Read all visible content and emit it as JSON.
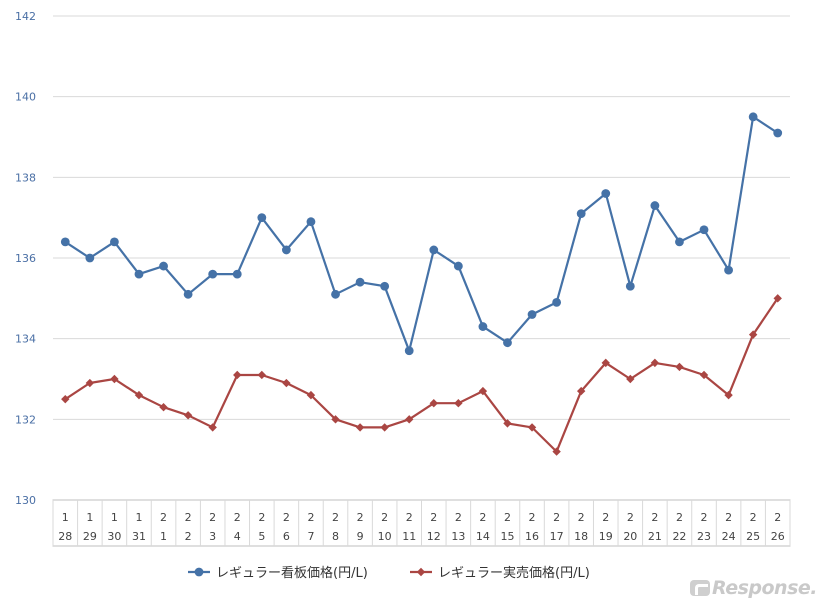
{
  "chart_data": {
    "type": "line",
    "title": "",
    "xlabel": "",
    "ylabel": "",
    "ylim": [
      130,
      142
    ],
    "yticks": [
      "130",
      "132",
      "134",
      "136",
      "138",
      "140",
      "142"
    ],
    "categories": [
      {
        "month": "1",
        "day": "28"
      },
      {
        "month": "1",
        "day": "29"
      },
      {
        "month": "1",
        "day": "30"
      },
      {
        "month": "1",
        "day": "31"
      },
      {
        "month": "2",
        "day": "1"
      },
      {
        "month": "2",
        "day": "2"
      },
      {
        "month": "2",
        "day": "3"
      },
      {
        "month": "2",
        "day": "4"
      },
      {
        "month": "2",
        "day": "5"
      },
      {
        "month": "2",
        "day": "6"
      },
      {
        "month": "2",
        "day": "7"
      },
      {
        "month": "2",
        "day": "8"
      },
      {
        "month": "2",
        "day": "9"
      },
      {
        "month": "2",
        "day": "10"
      },
      {
        "month": "2",
        "day": "11"
      },
      {
        "month": "2",
        "day": "12"
      },
      {
        "month": "2",
        "day": "13"
      },
      {
        "month": "2",
        "day": "14"
      },
      {
        "month": "2",
        "day": "15"
      },
      {
        "month": "2",
        "day": "16"
      },
      {
        "month": "2",
        "day": "17"
      },
      {
        "month": "2",
        "day": "18"
      },
      {
        "month": "2",
        "day": "19"
      },
      {
        "month": "2",
        "day": "20"
      },
      {
        "month": "2",
        "day": "21"
      },
      {
        "month": "2",
        "day": "22"
      },
      {
        "month": "2",
        "day": "23"
      },
      {
        "month": "2",
        "day": "24"
      },
      {
        "month": "2",
        "day": "25"
      },
      {
        "month": "2",
        "day": "26"
      }
    ],
    "series": [
      {
        "name": "レギュラー看板価格(円/L)",
        "color": "#4572a7",
        "marker": "circle",
        "values": [
          136.4,
          136.0,
          136.4,
          135.6,
          135.8,
          135.1,
          135.6,
          135.6,
          137.0,
          136.2,
          136.9,
          135.1,
          135.4,
          135.3,
          133.7,
          136.2,
          135.8,
          134.3,
          133.9,
          134.6,
          134.9,
          137.1,
          137.6,
          135.3,
          137.3,
          136.4,
          136.7,
          135.7,
          139.5,
          139.1
        ]
      },
      {
        "name": "レギュラー実売価格(円/L)",
        "color": "#aa4643",
        "marker": "diamond",
        "values": [
          132.5,
          132.9,
          133.0,
          132.6,
          132.3,
          132.1,
          131.8,
          133.1,
          133.1,
          132.9,
          132.6,
          132.0,
          131.8,
          131.8,
          132.0,
          132.4,
          132.4,
          132.7,
          131.9,
          131.8,
          131.2,
          132.7,
          133.4,
          133.0,
          133.4,
          133.3,
          133.1,
          132.6,
          134.1,
          135.0
        ]
      }
    ],
    "grid": true,
    "legend_position": "bottom-center"
  },
  "watermark": {
    "text": "Response."
  }
}
